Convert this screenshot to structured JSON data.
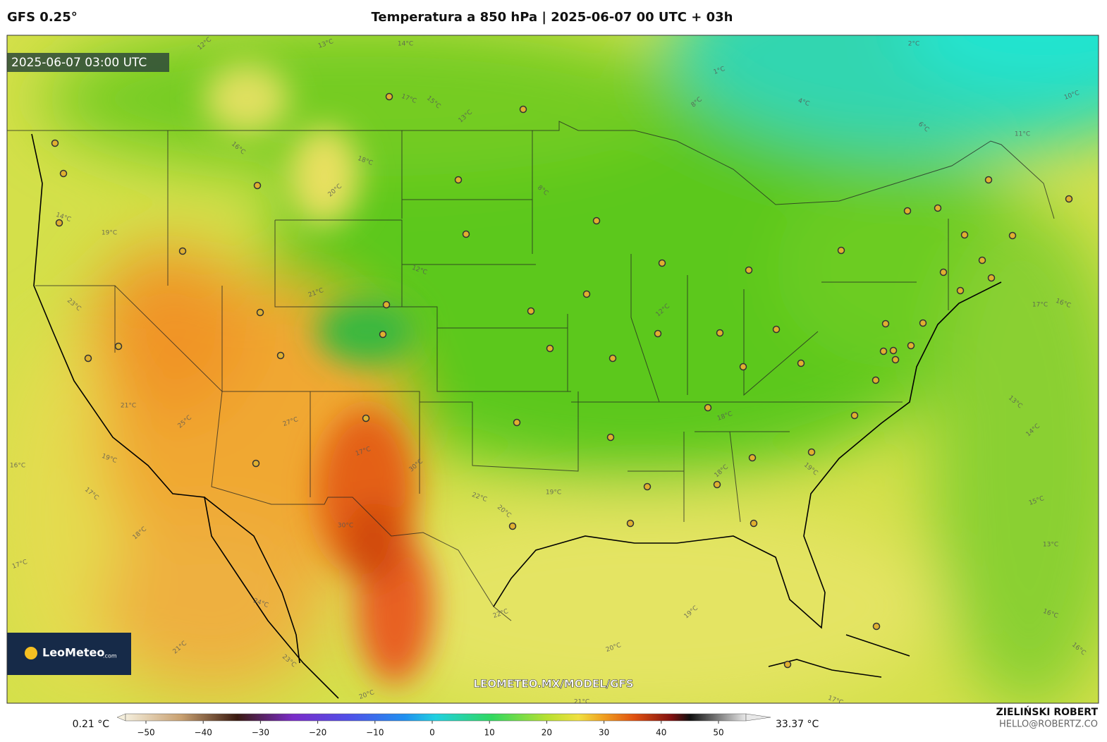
{
  "header": {
    "model": "GFS 0.25°",
    "title": "Temperatura a 850 hPa | 2025-06-07 00 UTC + 03h"
  },
  "map": {
    "timestamp": "2025-06-07 03:00 UTC",
    "logo": "LeoMeteo",
    "logo_domain": ".com",
    "watermark": "LEOMETEO.MX/MODEL/GFS",
    "contour_labels": [
      "12°C",
      "13°C",
      "14°C",
      "17°C",
      "15°C",
      "13°C",
      "1°C",
      "2°C",
      "4°C",
      "6°C",
      "8°C",
      "10°C",
      "11°C",
      "18°C",
      "16°C",
      "20°C",
      "21°C",
      "19°C",
      "14°C",
      "23°C",
      "25°C",
      "27°C",
      "21°C",
      "19°C",
      "17°C",
      "18°C",
      "17°C",
      "16°C",
      "12°C",
      "8°C",
      "12°C",
      "18°C",
      "17°C",
      "16°C",
      "13°C",
      "14°C",
      "15°C",
      "13°C",
      "16°C",
      "16°C",
      "19°C",
      "20°C",
      "19°C",
      "22°C",
      "20°C",
      "30°C",
      "17°C",
      "30°C",
      "24°C",
      "23°C",
      "21°C",
      "20°C",
      "21°C",
      "17°C",
      "19°C",
      "18°C",
      "22°C"
    ]
  },
  "colorbar": {
    "min_label": "0.21 °C",
    "max_label": "33.37 °C",
    "lim": [
      -55,
      55
    ],
    "ticks": [
      {
        "value": -50,
        "label": "−50"
      },
      {
        "value": -40,
        "label": "−40"
      },
      {
        "value": -30,
        "label": "−30"
      },
      {
        "value": -20,
        "label": "−20"
      },
      {
        "value": -10,
        "label": "−10"
      },
      0,
      10,
      20,
      30,
      40,
      50
    ]
  },
  "footer": {
    "author": "ZIELIŃSKI ROBERT",
    "email": "HELLO@ROBERTZ.CO"
  }
}
